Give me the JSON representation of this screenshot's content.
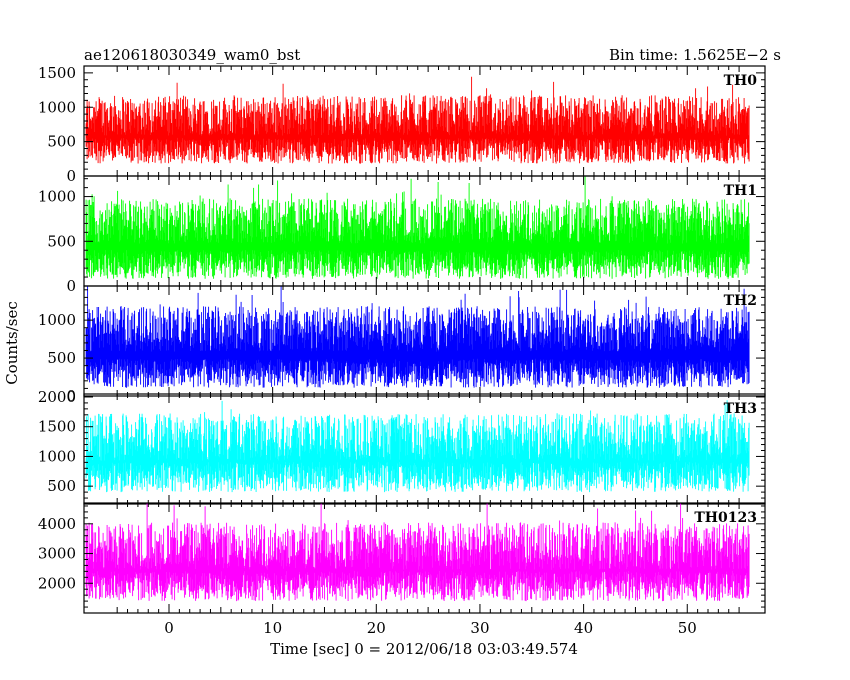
{
  "header": {
    "left_title": "ae120618030349_wam0_bst",
    "right_title": "Bin time: 1.5625E−2 s"
  },
  "chart_data": {
    "type": "line",
    "title": "ae120618030349_wam0_bst",
    "subtitle": "Bin time: 1.5625E−2 s",
    "xlabel": "Time [sec] 0 = 2012/06/18 03:03:49.574",
    "ylabel": "Counts/sec",
    "xlim": [
      -8.2,
      57.5
    ],
    "x_range_data": [
      -8,
      56
    ],
    "x_ticks": [
      0,
      10,
      20,
      30,
      40,
      50
    ],
    "grid": false,
    "panels": [
      {
        "name": "TH0",
        "color": "#ff0000",
        "ylim": [
          0,
          1600
        ],
        "y_ticks": [
          0,
          500,
          1000,
          1500
        ],
        "mean": 640,
        "low": 180,
        "high": 1250
      },
      {
        "name": "TH1",
        "color": "#00ff00",
        "ylim": [
          0,
          1230
        ],
        "y_ticks": [
          0,
          500,
          1000
        ],
        "mean": 520,
        "low": 80,
        "high": 1000
      },
      {
        "name": "TH2",
        "color": "#0000ff",
        "ylim": [
          0,
          1450
        ],
        "y_ticks": [
          0,
          500,
          1000
        ],
        "mean": 640,
        "low": 110,
        "high": 1200
      },
      {
        "name": "TH3",
        "color": "#00ffff",
        "ylim": [
          200,
          2050
        ],
        "y_ticks": [
          500,
          1000,
          1500,
          2000
        ],
        "mean": 1000,
        "low": 400,
        "high": 1850
      },
      {
        "name": "TH0123",
        "color": "#ff00ff",
        "ylim": [
          1000,
          4700
        ],
        "y_ticks": [
          2000,
          3000,
          4000
        ],
        "mean": 2600,
        "low": 1400,
        "high": 4300
      }
    ]
  }
}
